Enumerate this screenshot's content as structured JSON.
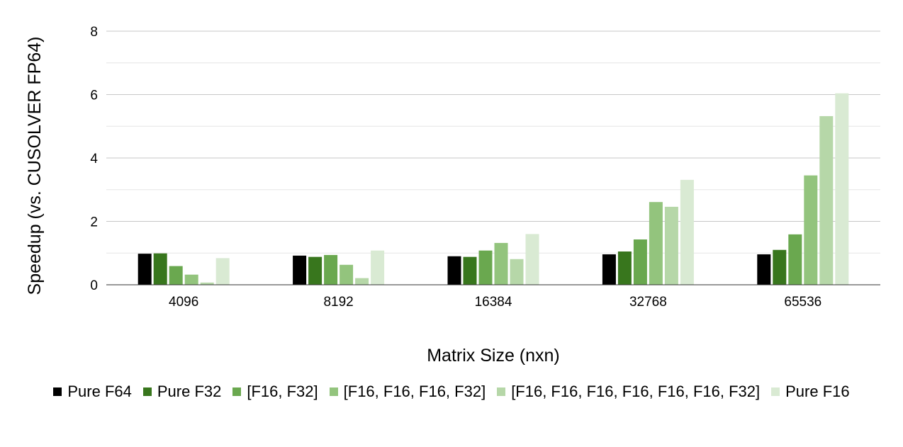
{
  "chart_data": {
    "type": "bar",
    "title": "",
    "xlabel": "Matrix Size (nxn)",
    "ylabel": "Speedup (vs. CUSOLVER FP64)",
    "ylim": [
      0,
      8
    ],
    "yticks": [
      "0",
      "2",
      "4",
      "6",
      "8"
    ],
    "grid": true,
    "legend_position": "bottom",
    "categories": [
      "4096",
      "8192",
      "16384",
      "32768",
      "65536"
    ],
    "series": [
      {
        "name": "Pure F64",
        "color": "#000000",
        "values": [
          0.98,
          0.92,
          0.9,
          0.96,
          0.96
        ]
      },
      {
        "name": "Pure F32",
        "color": "#38761d",
        "values": [
          0.99,
          0.88,
          0.88,
          1.05,
          1.1
        ]
      },
      {
        "name": "[F16, F32]",
        "color": "#6aa84f",
        "values": [
          0.59,
          0.94,
          1.08,
          1.43,
          1.59
        ]
      },
      {
        "name": "[F16, F16, F16, F32]",
        "color": "#93c47d",
        "values": [
          0.32,
          0.63,
          1.32,
          2.61,
          3.45
        ]
      },
      {
        "name": "[F16, F16, F16, F16, F16, F16, F32]",
        "color": "#b6d7a8",
        "values": [
          0.07,
          0.21,
          0.81,
          2.46,
          5.32
        ]
      },
      {
        "name": "Pure F16",
        "color": "#d9ead3",
        "values": [
          0.84,
          1.08,
          1.6,
          3.31,
          6.04
        ]
      }
    ]
  }
}
